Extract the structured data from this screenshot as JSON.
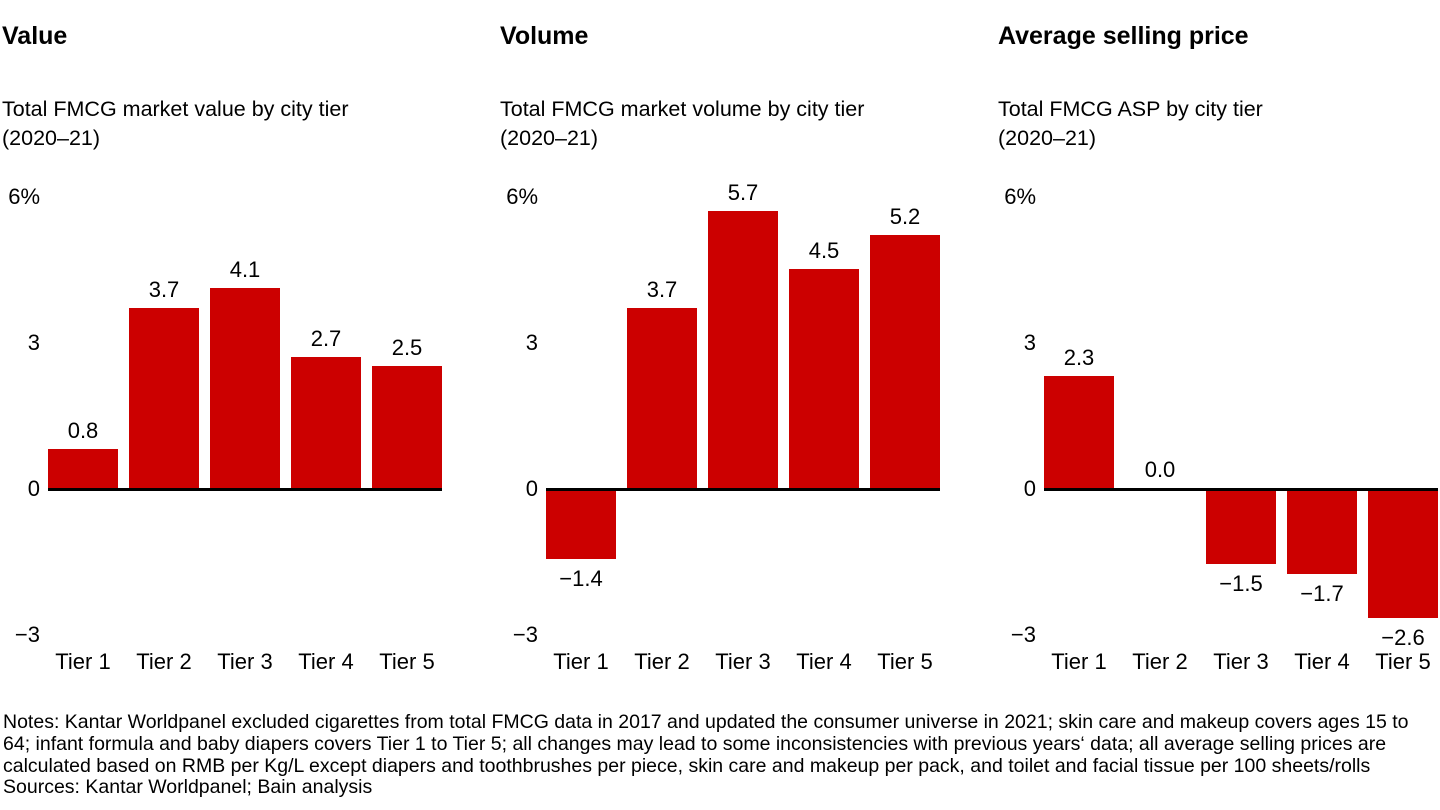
{
  "page": {
    "background_color": "#ffffff",
    "text_color": "#000000",
    "bar_color": "#cc0000",
    "axis_line_color": "#000000"
  },
  "chart_data": [
    {
      "type": "bar",
      "title": "Value",
      "subtitle_line1": "Total FMCG market value by city tier",
      "subtitle_line2": "(2020–21)",
      "categories": [
        "Tier 1",
        "Tier 2",
        "Tier 3",
        "Tier 4",
        "Tier 5"
      ],
      "values": [
        0.8,
        3.7,
        4.1,
        2.7,
        2.5
      ],
      "value_labels": [
        "0.8",
        "3.7",
        "4.1",
        "2.7",
        "2.5"
      ],
      "ylim": [
        -3,
        6
      ],
      "yticks": [
        6,
        3,
        0,
        -3
      ],
      "ytick_labels": [
        "6%",
        "3",
        "0",
        "−3"
      ],
      "bar_color": "#cc0000",
      "grid": "off",
      "legend": "none"
    },
    {
      "type": "bar",
      "title": "Volume",
      "subtitle_line1": "Total FMCG market volume by city tier",
      "subtitle_line2": "(2020–21)",
      "categories": [
        "Tier 1",
        "Tier 2",
        "Tier 3",
        "Tier 4",
        "Tier 5"
      ],
      "values": [
        -1.4,
        3.7,
        5.7,
        4.5,
        5.2
      ],
      "value_labels": [
        "−1.4",
        "3.7",
        "5.7",
        "4.5",
        "5.2"
      ],
      "ylim": [
        -3,
        6
      ],
      "yticks": [
        6,
        3,
        0,
        -3
      ],
      "ytick_labels": [
        "6%",
        "3",
        "0",
        "−3"
      ],
      "bar_color": "#cc0000",
      "grid": "off",
      "legend": "none"
    },
    {
      "type": "bar",
      "title": "Average selling price",
      "subtitle_line1": "Total FMCG ASP by city tier",
      "subtitle_line2": "(2020–21)",
      "categories": [
        "Tier 1",
        "Tier 2",
        "Tier 3",
        "Tier 4",
        "Tier 5"
      ],
      "values": [
        2.3,
        0.0,
        -1.5,
        -1.7,
        -2.6
      ],
      "value_labels": [
        "2.3",
        "0.0",
        "−1.5",
        "−1.7",
        "−2.6"
      ],
      "ylim": [
        -3,
        6
      ],
      "yticks": [
        6,
        3,
        0,
        -3
      ],
      "ytick_labels": [
        "6%",
        "3",
        "0",
        "−3"
      ],
      "bar_color": "#cc0000",
      "grid": "off",
      "legend": "none"
    }
  ],
  "footer": {
    "notes": "Notes: Kantar Worldpanel excluded cigarettes from total FMCG data in 2017 and updated the consumer universe in 2021; skin care and makeup covers ages 15 to 64; infant formula and baby diapers covers Tier 1 to Tier 5; all changes may lead to some inconsistencies with previous years‘ data; all average selling prices are calculated based on RMB per Kg/L except diapers and toothbrushes per piece, skin care and makeup per pack, and toilet and facial tissue per 100 sheets/rolls",
    "sources": "Sources: Kantar Worldpanel; Bain analysis"
  }
}
